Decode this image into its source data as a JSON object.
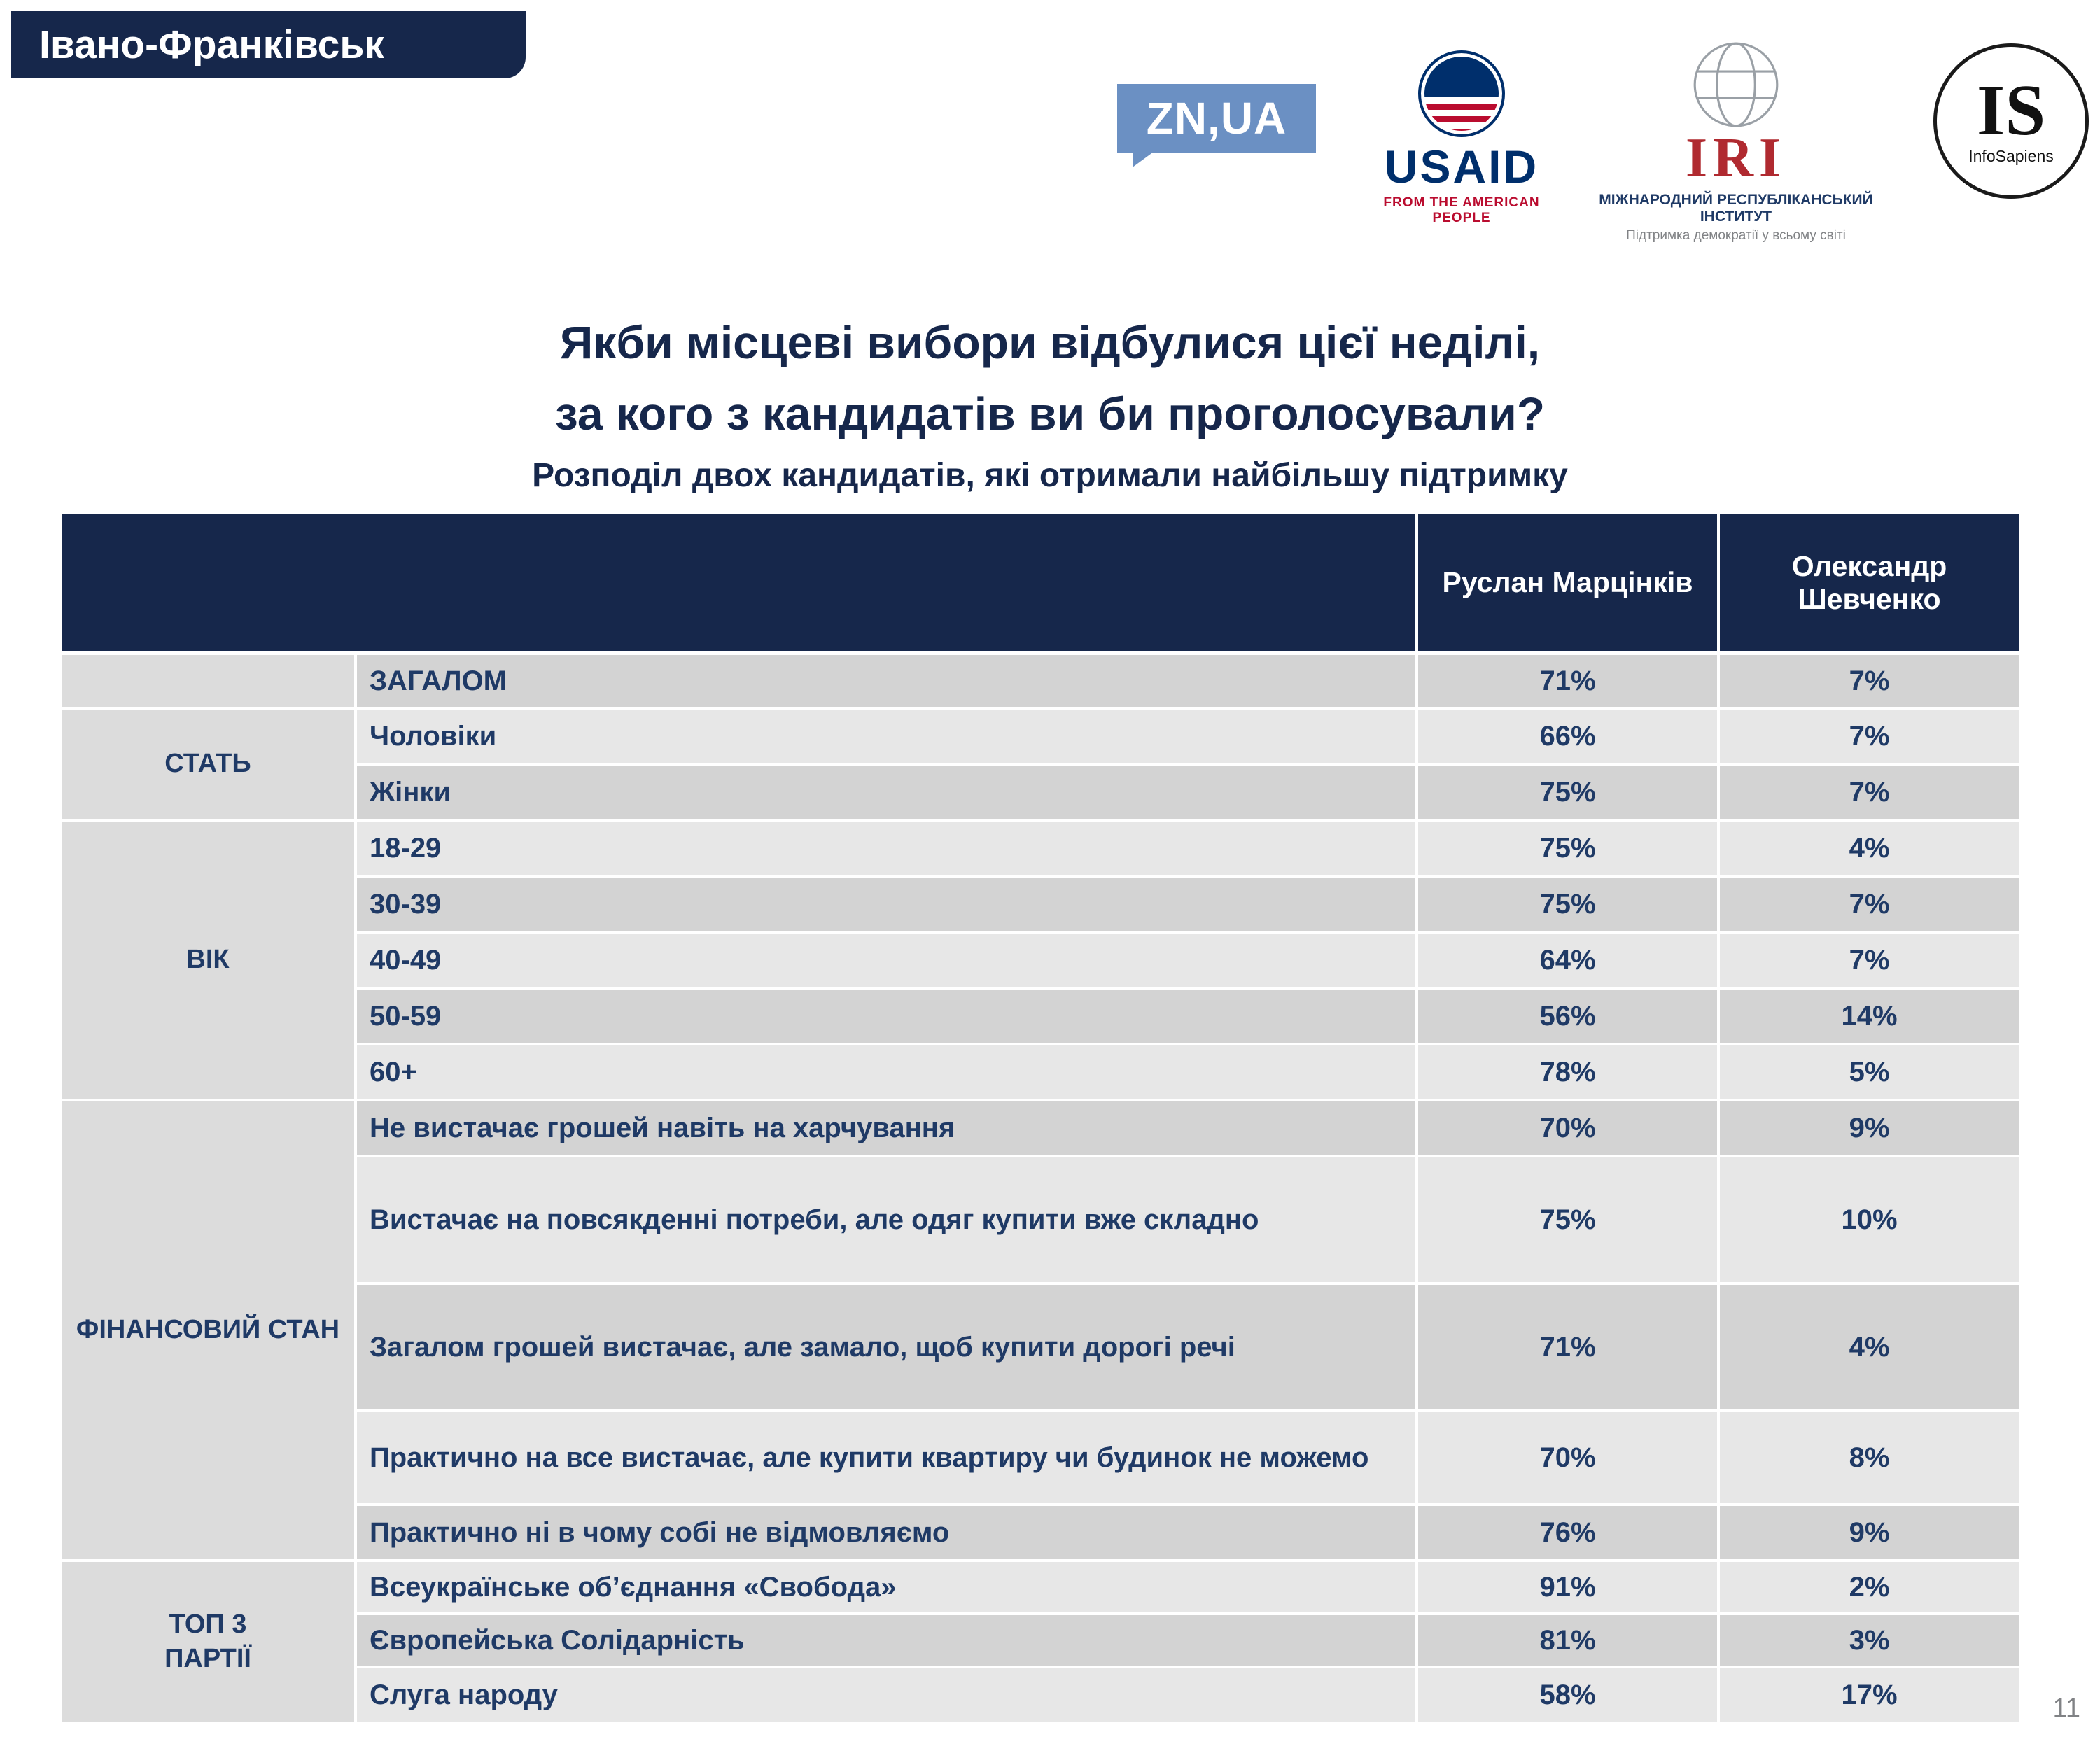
{
  "page": {
    "region": "Івано-Франківськ",
    "number": "11"
  },
  "logos": {
    "znua": "ZN,UA",
    "usaid": {
      "name": "USAID",
      "tagline": "FROM THE AMERICAN PEOPLE"
    },
    "iri": {
      "abbr": "IRI",
      "line1": "МІЖНАРОДНИЙ РЕСПУБЛІКАНСЬКИЙ ІНСТИТУТ",
      "line2": "Підтримка демократії у всьому світі"
    },
    "infosapiens": {
      "abbr": "IS",
      "name": "InfoSapiens"
    }
  },
  "title": {
    "line1": "Якби місцеві вибори відбулися цієї неділі,",
    "line2": "за кого з кандидатів ви би проголосували?",
    "subtitle": "Розподіл двох кандидатів, які отримали найбільшу підтримку"
  },
  "chart_data": {
    "type": "table",
    "columns": [
      "Руслан Марцінків",
      "Олександр Шевченко"
    ],
    "groups": [
      {
        "label": "",
        "rows": [
          {
            "label": "ЗАГАЛОМ",
            "values": [
              "71%",
              "7%"
            ]
          }
        ]
      },
      {
        "label": "СТАТЬ",
        "rows": [
          {
            "label": "Чоловіки",
            "values": [
              "66%",
              "7%"
            ]
          },
          {
            "label": "Жінки",
            "values": [
              "75%",
              "7%"
            ]
          }
        ]
      },
      {
        "label": "ВІК",
        "rows": [
          {
            "label": "18-29",
            "values": [
              "75%",
              "4%"
            ]
          },
          {
            "label": "30-39",
            "values": [
              "75%",
              "7%"
            ]
          },
          {
            "label": "40-49",
            "values": [
              "64%",
              "7%"
            ]
          },
          {
            "label": "50-59",
            "values": [
              "56%",
              "14%"
            ]
          },
          {
            "label": "60+",
            "values": [
              "78%",
              "5%"
            ]
          }
        ]
      },
      {
        "label": "ФІНАНСОВИЙ СТАН",
        "rows": [
          {
            "label": "Не вистачає грошей навіть на харчування",
            "values": [
              "70%",
              "9%"
            ]
          },
          {
            "label": "Вистачає на повсякденні потреби, але одяг купити вже складно",
            "values": [
              "75%",
              "10%"
            ]
          },
          {
            "label": "Загалом грошей вистачає, але замало, щоб купити дорогі речі",
            "values": [
              "71%",
              "4%"
            ]
          },
          {
            "label": "Практично на все вистачає, але купити квартиру чи будинок не можемо",
            "values": [
              "70%",
              "8%"
            ]
          },
          {
            "label": "Практично ні в чому собі не відмовляємо",
            "values": [
              "76%",
              "9%"
            ]
          }
        ]
      },
      {
        "label": "ТОП 3\nПАРТІЇ",
        "rows": [
          {
            "label": "Всеукраїнське об’єднання «Свобода»",
            "values": [
              "91%",
              "2%"
            ]
          },
          {
            "label": "Європейська Солідарність",
            "values": [
              "81%",
              "3%"
            ]
          },
          {
            "label": "Слуга народу",
            "values": [
              "58%",
              "17%"
            ]
          }
        ]
      }
    ]
  },
  "colors": {
    "navy": "#16274b",
    "table_text": "#1f3a66",
    "row_dark": "#d3d3d3",
    "row_light": "#e7e7e7",
    "category_bg": "#dcdcdc",
    "znua_blue": "#6b90c3",
    "usaid_navy": "#002f6c",
    "usaid_red": "#ba0c2f",
    "iri_red": "#b02a30",
    "gray_text": "#808285"
  }
}
